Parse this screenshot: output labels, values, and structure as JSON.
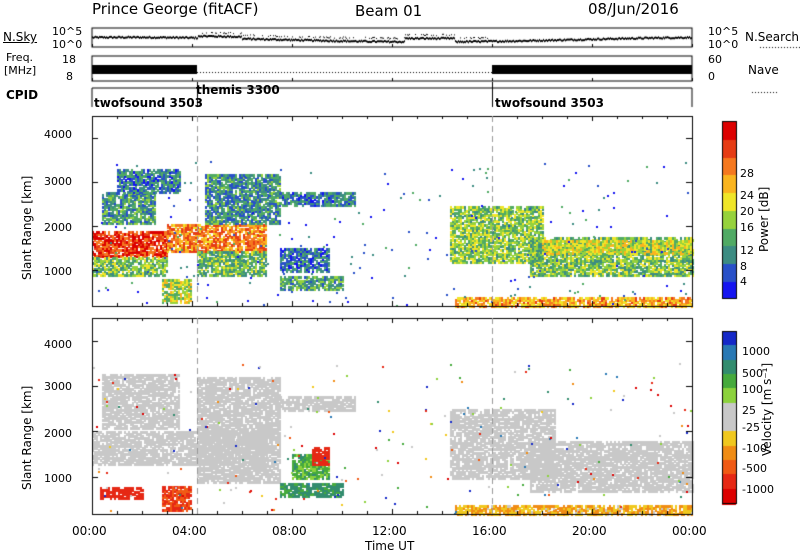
{
  "header": {
    "station": "Prince George (fitACF)",
    "beam": "Beam 01",
    "date": "08/Jun/2016"
  },
  "top_panels": {
    "nsky_label": "N.Sky",
    "nsky_ticks": [
      "10^5",
      "10^0"
    ],
    "nsearch_label": "N.Search",
    "nsearch_ticks": [
      "10^5",
      "10^0"
    ],
    "freq_label_1": "Freq.",
    "freq_label_2": "[MHz]",
    "freq_ticks": [
      "18",
      "8"
    ],
    "nave_label": "Nave",
    "nave_ticks": [
      "60",
      "0"
    ],
    "cpid_label": "CPID",
    "cpid_segments": [
      {
        "label": "twofsound 3503",
        "start_hour": 0,
        "end_hour": 4.2
      },
      {
        "label": "themis 3300",
        "start_hour": 4.2,
        "end_hour": 16
      },
      {
        "label": "twofsound 3503",
        "start_hour": 16,
        "end_hour": 24
      }
    ]
  },
  "colors": {
    "power_scale": [
      "#1414f0",
      "#2850c8",
      "#3c8c82",
      "#50aa64",
      "#96d23c",
      "#f0e628",
      "#fab41e",
      "#f5781e",
      "#e63c14",
      "#dc0000"
    ],
    "velocity_scale": [
      "#1428c8",
      "#2878b4",
      "#328c6e",
      "#46aa3c",
      "#8cd23c",
      "#c8c8c8",
      "#c8c8c8",
      "#f0c81e",
      "#f08c14",
      "#f05a14",
      "#e62814",
      "#dc0000"
    ],
    "ground_scatter": "#c8c8c8"
  },
  "chart_data": [
    {
      "type": "heatmap",
      "name": "power",
      "ylabel": "Slant Range [km]",
      "ylim": [
        180,
        4500
      ],
      "yticks": [
        "1000",
        "2000",
        "3000",
        "4000"
      ],
      "xlim": [
        0,
        24
      ],
      "xticks": [
        "00:00",
        "04:00",
        "08:00",
        "12:00",
        "16:00",
        "20:00",
        "00:00"
      ],
      "colorbar_label": "Power [dB]",
      "colorbar_ticks": [
        "4",
        "8",
        "12",
        "16",
        "20",
        "24",
        "28"
      ],
      "colorbar_range": [
        0,
        30
      ],
      "regions": [
        {
          "t0": 0.0,
          "t1": 3.0,
          "r0": 1350,
          "r1": 1900,
          "level": 26
        },
        {
          "t0": 3.0,
          "t1": 7.0,
          "r0": 1450,
          "r1": 2050,
          "level": 22
        },
        {
          "t0": 0.0,
          "t1": 3.0,
          "r0": 900,
          "r1": 1350,
          "level": 12
        },
        {
          "t0": 0.4,
          "t1": 2.5,
          "r0": 2100,
          "r1": 2800,
          "level": 9
        },
        {
          "t0": 1.0,
          "t1": 3.5,
          "r0": 2800,
          "r1": 3300,
          "level": 7
        },
        {
          "t0": 4.2,
          "t1": 7.0,
          "r0": 900,
          "r1": 1450,
          "level": 11
        },
        {
          "t0": 4.5,
          "t1": 7.5,
          "r0": 2100,
          "r1": 3200,
          "level": 8
        },
        {
          "t0": 7.5,
          "t1": 10.5,
          "r0": 2500,
          "r1": 2800,
          "level": 7
        },
        {
          "t0": 7.5,
          "t1": 10.0,
          "r0": 600,
          "r1": 900,
          "level": 10
        },
        {
          "t0": 7.5,
          "t1": 9.5,
          "r0": 1000,
          "r1": 1500,
          "level": 6
        },
        {
          "t0": 14.3,
          "t1": 18.0,
          "r0": 1200,
          "r1": 2500,
          "level": 13
        },
        {
          "t0": 17.5,
          "t1": 24.0,
          "r0": 900,
          "r1": 1800,
          "level": 12
        },
        {
          "t0": 18.0,
          "t1": 24.0,
          "r0": 1400,
          "r1": 1700,
          "level": 16
        },
        {
          "t0": 14.5,
          "t1": 24.0,
          "r0": 200,
          "r1": 400,
          "level": 20
        },
        {
          "t0": 2.8,
          "t1": 4.0,
          "r0": 300,
          "r1": 800,
          "level": 14
        }
      ]
    },
    {
      "type": "heatmap",
      "name": "velocity",
      "ylabel": "Slant Range [km]",
      "ylim": [
        180,
        4500
      ],
      "yticks": [
        "1000",
        "2000",
        "3000",
        "4000"
      ],
      "xlim": [
        0,
        24
      ],
      "xticks": [
        "00:00",
        "04:00",
        "08:00",
        "12:00",
        "16:00",
        "20:00",
        "00:00"
      ],
      "xlabel": "Time UT",
      "colorbar_label": "Velocity [m s⁻¹]",
      "colorbar_ticks": [
        "1000",
        "500",
        "100",
        "25",
        "-25",
        "-100",
        "-500",
        "-1000"
      ],
      "regions": [
        {
          "t0": 0.0,
          "t1": 7.0,
          "r0": 1300,
          "r1": 2050,
          "kind": "ground"
        },
        {
          "t0": 0.4,
          "t1": 3.5,
          "r0": 2100,
          "r1": 3300,
          "kind": "ground"
        },
        {
          "t0": 4.2,
          "t1": 7.5,
          "r0": 900,
          "r1": 3200,
          "kind": "ground"
        },
        {
          "t0": 7.5,
          "t1": 10.5,
          "r0": 2500,
          "r1": 2800,
          "kind": "ground"
        },
        {
          "t0": 14.3,
          "t1": 18.5,
          "r0": 1000,
          "r1": 2500,
          "kind": "ground"
        },
        {
          "t0": 17.5,
          "t1": 24.0,
          "r0": 700,
          "r1": 1800,
          "kind": "ground"
        },
        {
          "t0": 0.3,
          "t1": 2.0,
          "r0": 550,
          "r1": 800,
          "velocity": -400
        },
        {
          "t0": 2.8,
          "t1": 4.0,
          "r0": 300,
          "r1": 800,
          "velocity": -300
        },
        {
          "t0": 7.5,
          "t1": 10.0,
          "r0": 600,
          "r1": 900,
          "velocity": 120
        },
        {
          "t0": 8.0,
          "t1": 9.5,
          "r0": 1000,
          "r1": 1500,
          "velocity": 80
        },
        {
          "t0": 8.8,
          "t1": 9.5,
          "r0": 1300,
          "r1": 1700,
          "velocity": -400
        },
        {
          "t0": 14.5,
          "t1": 24.0,
          "r0": 200,
          "r1": 400,
          "velocity": -60
        }
      ]
    }
  ]
}
